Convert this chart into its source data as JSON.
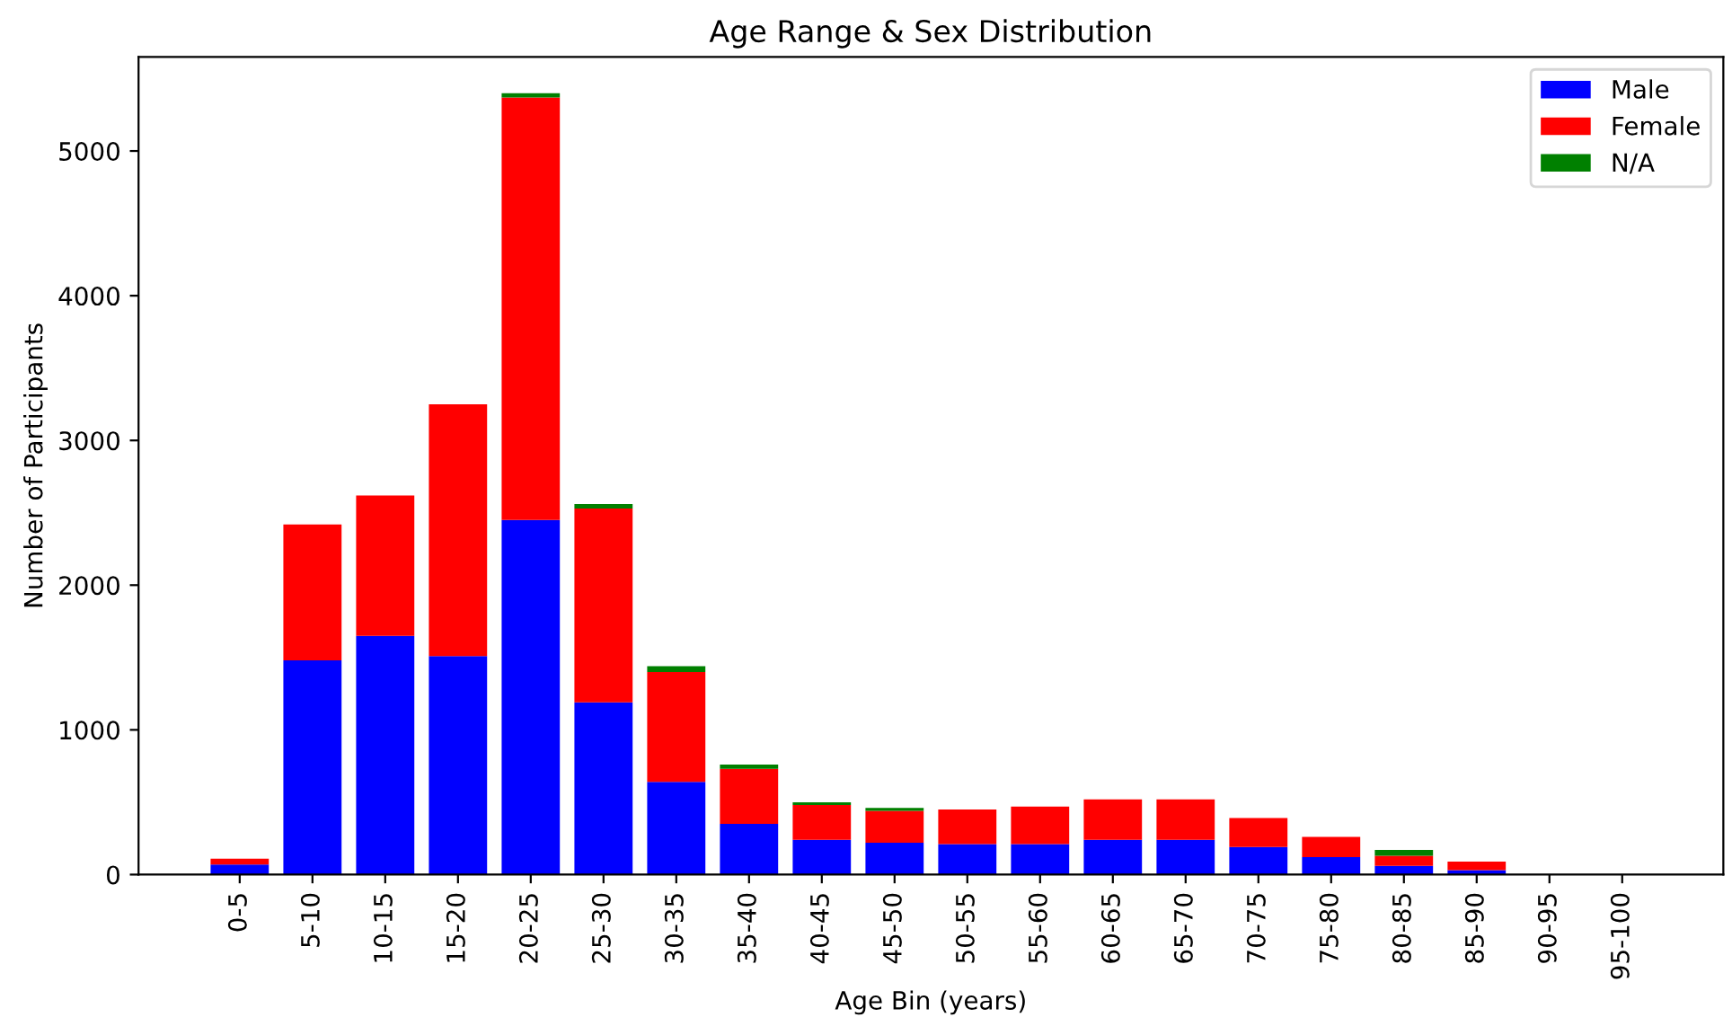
{
  "chart_data": {
    "type": "bar",
    "title": "Age Range & Sex Distribution",
    "xlabel": "Age Bin (years)",
    "ylabel": "Number of Participants",
    "categories": [
      "0-5",
      "5-10",
      "10-15",
      "15-20",
      "20-25",
      "25-30",
      "30-35",
      "35-40",
      "40-45",
      "45-50",
      "50-55",
      "55-60",
      "60-65",
      "65-70",
      "70-75",
      "75-80",
      "80-85",
      "85-90",
      "90-95",
      "95-100"
    ],
    "stacked": true,
    "series": [
      {
        "name": "Male",
        "color": "#0000ff",
        "values": [
          70,
          1480,
          1650,
          1510,
          2450,
          1190,
          640,
          350,
          240,
          220,
          210,
          210,
          240,
          240,
          190,
          120,
          60,
          30,
          0,
          0
        ]
      },
      {
        "name": "Female",
        "color": "#ff0000",
        "values": [
          40,
          940,
          970,
          1740,
          2920,
          1340,
          760,
          380,
          240,
          220,
          240,
          260,
          280,
          280,
          200,
          140,
          70,
          60,
          0,
          0
        ]
      },
      {
        "name": "N/A",
        "color": "#008000",
        "values": [
          0,
          null,
          0,
          0,
          30,
          30,
          40,
          30,
          20,
          20,
          0,
          0,
          0,
          0,
          null,
          null,
          40,
          0,
          0,
          0
        ]
      }
    ],
    "ylim": [
      0,
      5650
    ],
    "yticks": [
      0,
      1000,
      2000,
      3000,
      4000,
      5000
    ],
    "grid": false,
    "legend": "top right"
  }
}
